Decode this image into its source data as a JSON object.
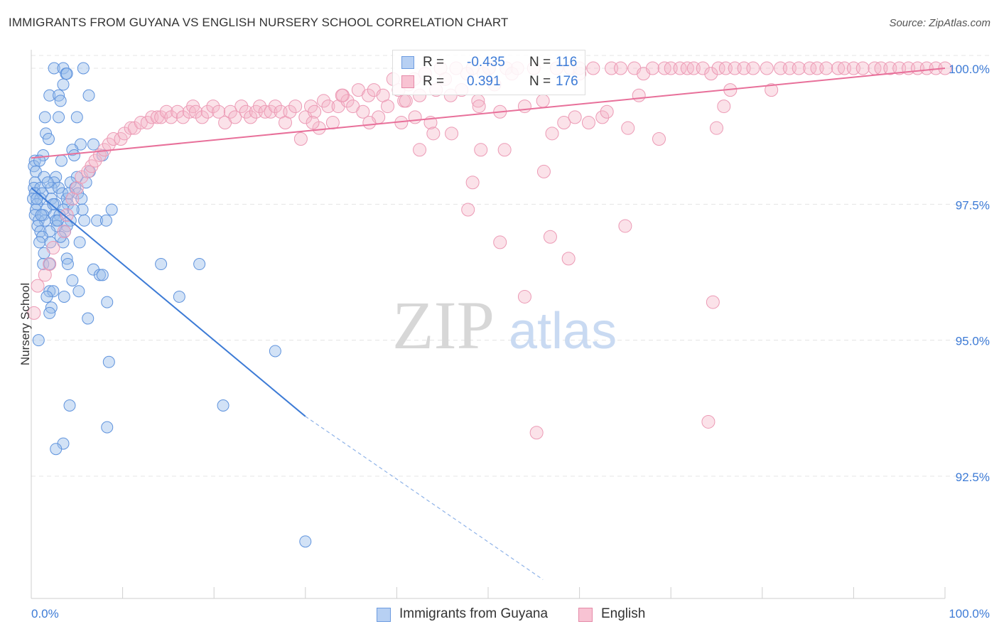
{
  "header": {
    "title": "IMMIGRANTS FROM GUYANA VS ENGLISH NURSERY SCHOOL CORRELATION CHART",
    "source": "Source: ZipAtlas.com"
  },
  "watermark": {
    "zip": "ZIP",
    "atlas": "atlas"
  },
  "legend_top": {
    "rows": [
      {
        "r_label": "R =",
        "r_value": "-0.435",
        "n_label": "N =",
        "n_value": "116"
      },
      {
        "r_label": "R =",
        "r_value": "0.391",
        "n_label": "N =",
        "n_value": "176"
      }
    ]
  },
  "legend_bottom": {
    "items": [
      "Immigrants from Guyana",
      "English"
    ]
  },
  "colors": {
    "blue": "#3d7bd6",
    "blue_fill": "#9bbfec",
    "pink": "#e8709a",
    "pink_fill": "#f5b6c9",
    "grid": "#e6e6e6",
    "tick_text": "#3d7bd6"
  },
  "chart_data": {
    "type": "scatter",
    "title": "IMMIGRANTS FROM GUYANA VS ENGLISH NURSERY SCHOOL CORRELATION CHART",
    "xlabel": "",
    "ylabel": "Nursery School",
    "xlim": [
      0,
      100
    ],
    "ylim": [
      90.6,
      100.2
    ],
    "x_tick_labels": [
      "0.0%",
      "100.0%"
    ],
    "y_ticks": [
      92.5,
      95.0,
      97.5,
      100.0
    ],
    "y_tick_labels": [
      "92.5%",
      "95.0%",
      "97.5%",
      "100.0%"
    ],
    "grid": true,
    "series": [
      {
        "name": "Immigrants from Guyana",
        "color": "#3d7bd6",
        "r": -0.435,
        "n": 116,
        "trend": {
          "x": [
            0,
            30
          ],
          "y": [
            97.8,
            93.6
          ],
          "dashed_to": [
            56,
            90.6
          ]
        },
        "points": [
          [
            2.5,
            100.0
          ],
          [
            3.5,
            100.0
          ],
          [
            5.7,
            100.0
          ],
          [
            3.8,
            99.9
          ],
          [
            3.9,
            99.9
          ],
          [
            3.5,
            99.7
          ],
          [
            2.0,
            99.5
          ],
          [
            3.0,
            99.5
          ],
          [
            6.3,
            99.5
          ],
          [
            3.2,
            99.4
          ],
          [
            1.5,
            99.1
          ],
          [
            3.0,
            99.1
          ],
          [
            5.0,
            99.1
          ],
          [
            1.6,
            98.8
          ],
          [
            1.9,
            98.7
          ],
          [
            5.4,
            98.6
          ],
          [
            6.8,
            98.6
          ],
          [
            4.5,
            98.5
          ],
          [
            1.3,
            98.4
          ],
          [
            4.7,
            98.4
          ],
          [
            7.8,
            98.4
          ],
          [
            0.4,
            98.3
          ],
          [
            3.3,
            98.3
          ],
          [
            0.3,
            98.2
          ],
          [
            0.5,
            98.1
          ],
          [
            1.4,
            98.0
          ],
          [
            2.7,
            98.0
          ],
          [
            5.0,
            98.0
          ],
          [
            0.4,
            97.9
          ],
          [
            2.5,
            97.9
          ],
          [
            4.3,
            97.9
          ],
          [
            6.0,
            97.9
          ],
          [
            0.3,
            97.8
          ],
          [
            1.0,
            97.8
          ],
          [
            2.2,
            97.8
          ],
          [
            3.0,
            97.8
          ],
          [
            4.8,
            97.8
          ],
          [
            0.4,
            97.7
          ],
          [
            1.2,
            97.7
          ],
          [
            3.4,
            97.7
          ],
          [
            5.1,
            97.7
          ],
          [
            0.2,
            97.6
          ],
          [
            1.0,
            97.6
          ],
          [
            2.2,
            97.6
          ],
          [
            3.9,
            97.6
          ],
          [
            5.5,
            97.6
          ],
          [
            0.6,
            97.5
          ],
          [
            2.6,
            97.5
          ],
          [
            4.0,
            97.5
          ],
          [
            0.5,
            97.4
          ],
          [
            1.6,
            97.4
          ],
          [
            3.5,
            97.4
          ],
          [
            5.6,
            97.4
          ],
          [
            8.8,
            97.4
          ],
          [
            0.4,
            97.3
          ],
          [
            1.3,
            97.3
          ],
          [
            2.5,
            97.3
          ],
          [
            3.1,
            97.3
          ],
          [
            0.8,
            97.2
          ],
          [
            1.5,
            97.2
          ],
          [
            2.7,
            97.2
          ],
          [
            4.3,
            97.2
          ],
          [
            5.8,
            97.2
          ],
          [
            7.2,
            97.2
          ],
          [
            8.2,
            97.2
          ],
          [
            0.7,
            97.1
          ],
          [
            2.8,
            97.1
          ],
          [
            3.9,
            97.1
          ],
          [
            1.0,
            97.0
          ],
          [
            2.0,
            97.0
          ],
          [
            3.7,
            97.0
          ],
          [
            1.2,
            96.9
          ],
          [
            0.9,
            96.8
          ],
          [
            2.1,
            96.8
          ],
          [
            3.5,
            96.8
          ],
          [
            1.4,
            96.6
          ],
          [
            3.9,
            96.5
          ],
          [
            4.0,
            96.4
          ],
          [
            1.3,
            96.4
          ],
          [
            2.0,
            96.4
          ],
          [
            14.2,
            96.4
          ],
          [
            18.4,
            96.4
          ],
          [
            6.8,
            96.3
          ],
          [
            7.5,
            96.2
          ],
          [
            7.8,
            96.2
          ],
          [
            4.5,
            96.1
          ],
          [
            2.0,
            95.9
          ],
          [
            2.4,
            95.9
          ],
          [
            5.2,
            95.9
          ],
          [
            1.7,
            95.8
          ],
          [
            3.6,
            95.8
          ],
          [
            16.2,
            95.8
          ],
          [
            8.3,
            95.7
          ],
          [
            2.2,
            95.6
          ],
          [
            2.0,
            95.5
          ],
          [
            6.2,
            95.4
          ],
          [
            0.8,
            95.0
          ],
          [
            26.7,
            94.8
          ],
          [
            8.5,
            94.6
          ],
          [
            4.2,
            93.8
          ],
          [
            21.0,
            93.8
          ],
          [
            8.3,
            93.4
          ],
          [
            3.5,
            93.1
          ],
          [
            2.7,
            93.0
          ],
          [
            30.0,
            91.3
          ],
          [
            0.6,
            97.6
          ],
          [
            1.8,
            97.9
          ],
          [
            2.9,
            97.2
          ],
          [
            4.6,
            97.4
          ],
          [
            6.4,
            98.1
          ],
          [
            0.9,
            98.3
          ],
          [
            2.4,
            97.5
          ],
          [
            3.2,
            96.9
          ],
          [
            4.1,
            97.7
          ],
          [
            1.1,
            97.3
          ],
          [
            5.3,
            96.8
          ]
        ]
      },
      {
        "name": "English",
        "color": "#e8709a",
        "r": 0.391,
        "n": 176,
        "trend": {
          "x": [
            0,
            100
          ],
          "y": [
            98.35,
            100.0
          ]
        },
        "points": [
          [
            0.3,
            95.5
          ],
          [
            0.7,
            96.0
          ],
          [
            1.5,
            96.2
          ],
          [
            2.0,
            96.4
          ],
          [
            2.4,
            96.7
          ],
          [
            3.6,
            97.0
          ],
          [
            3.9,
            97.3
          ],
          [
            4.5,
            97.6
          ],
          [
            5.0,
            97.8
          ],
          [
            5.5,
            98.0
          ],
          [
            6.2,
            98.1
          ],
          [
            6.6,
            98.2
          ],
          [
            7.0,
            98.3
          ],
          [
            7.5,
            98.4
          ],
          [
            8.0,
            98.5
          ],
          [
            8.5,
            98.6
          ],
          [
            9.0,
            98.7
          ],
          [
            9.8,
            98.7
          ],
          [
            10.2,
            98.8
          ],
          [
            10.9,
            98.9
          ],
          [
            11.3,
            98.9
          ],
          [
            12.0,
            99.0
          ],
          [
            12.7,
            99.0
          ],
          [
            13.2,
            99.1
          ],
          [
            13.8,
            99.1
          ],
          [
            14.2,
            99.1
          ],
          [
            14.8,
            99.2
          ],
          [
            15.3,
            99.1
          ],
          [
            16.0,
            99.2
          ],
          [
            16.6,
            99.1
          ],
          [
            17.3,
            99.2
          ],
          [
            17.7,
            99.3
          ],
          [
            18.0,
            99.2
          ],
          [
            18.7,
            99.1
          ],
          [
            19.3,
            99.2
          ],
          [
            19.9,
            99.3
          ],
          [
            20.5,
            99.2
          ],
          [
            21.2,
            99.0
          ],
          [
            21.8,
            99.2
          ],
          [
            22.3,
            99.1
          ],
          [
            23.0,
            99.3
          ],
          [
            23.5,
            99.2
          ],
          [
            24.0,
            99.1
          ],
          [
            24.6,
            99.2
          ],
          [
            25.0,
            99.3
          ],
          [
            25.6,
            99.2
          ],
          [
            26.2,
            99.2
          ],
          [
            26.7,
            99.3
          ],
          [
            27.3,
            99.2
          ],
          [
            27.8,
            99.0
          ],
          [
            28.3,
            99.2
          ],
          [
            28.9,
            99.3
          ],
          [
            29.5,
            98.7
          ],
          [
            30.0,
            99.1
          ],
          [
            30.6,
            99.3
          ],
          [
            31.0,
            99.2
          ],
          [
            31.5,
            98.9
          ],
          [
            32.0,
            99.4
          ],
          [
            32.5,
            99.3
          ],
          [
            33.0,
            99.0
          ],
          [
            33.6,
            99.3
          ],
          [
            34.1,
            99.5
          ],
          [
            34.6,
            99.4
          ],
          [
            35.2,
            99.3
          ],
          [
            35.8,
            99.6
          ],
          [
            36.3,
            99.2
          ],
          [
            36.9,
            99.5
          ],
          [
            37.5,
            99.6
          ],
          [
            38.0,
            99.1
          ],
          [
            38.5,
            99.5
          ],
          [
            39.0,
            99.3
          ],
          [
            39.6,
            99.8
          ],
          [
            40.2,
            99.6
          ],
          [
            40.8,
            99.4
          ],
          [
            41.3,
            99.7
          ],
          [
            41.9,
            99.8
          ],
          [
            42.5,
            99.5
          ],
          [
            43.1,
            99.9
          ],
          [
            43.7,
            99.0
          ],
          [
            44.3,
            99.6
          ],
          [
            44.8,
            100.0
          ],
          [
            45.3,
            99.8
          ],
          [
            45.9,
            99.5
          ],
          [
            46.5,
            100.0
          ],
          [
            47.1,
            99.6
          ],
          [
            47.7,
            99.9
          ],
          [
            48.3,
            100.0
          ],
          [
            48.9,
            99.4
          ],
          [
            49.5,
            99.9
          ],
          [
            50.1,
            100.0
          ],
          [
            50.7,
            99.7
          ],
          [
            51.3,
            99.2
          ],
          [
            52.0,
            100.0
          ],
          [
            52.6,
            99.9
          ],
          [
            53.2,
            100.0
          ],
          [
            54.0,
            99.3
          ],
          [
            55.0,
            100.0
          ],
          [
            56.0,
            99.4
          ],
          [
            57.5,
            100.0
          ],
          [
            58.3,
            99.0
          ],
          [
            59.0,
            100.0
          ],
          [
            60.0,
            99.9
          ],
          [
            61.5,
            100.0
          ],
          [
            62.5,
            99.1
          ],
          [
            63.5,
            100.0
          ],
          [
            64.5,
            100.0
          ],
          [
            65.3,
            98.9
          ],
          [
            66.0,
            100.0
          ],
          [
            67.0,
            99.9
          ],
          [
            68.0,
            100.0
          ],
          [
            68.7,
            98.7
          ],
          [
            69.3,
            100.0
          ],
          [
            70.0,
            100.0
          ],
          [
            71.0,
            100.0
          ],
          [
            71.8,
            100.0
          ],
          [
            72.5,
            100.0
          ],
          [
            73.5,
            100.0
          ],
          [
            74.4,
            99.9
          ],
          [
            75.2,
            100.0
          ],
          [
            76.0,
            100.0
          ],
          [
            77.0,
            100.0
          ],
          [
            78.0,
            100.0
          ],
          [
            79.0,
            100.0
          ],
          [
            80.5,
            100.0
          ],
          [
            81.0,
            99.6
          ],
          [
            82.0,
            100.0
          ],
          [
            83.0,
            100.0
          ],
          [
            84.0,
            100.0
          ],
          [
            85.2,
            100.0
          ],
          [
            86.0,
            100.0
          ],
          [
            87.0,
            100.0
          ],
          [
            88.3,
            100.0
          ],
          [
            89.0,
            100.0
          ],
          [
            90.0,
            100.0
          ],
          [
            91.0,
            100.0
          ],
          [
            92.3,
            100.0
          ],
          [
            93.0,
            100.0
          ],
          [
            94.0,
            100.0
          ],
          [
            95.0,
            100.0
          ],
          [
            96.0,
            100.0
          ],
          [
            97.0,
            100.0
          ],
          [
            98.0,
            100.0
          ],
          [
            99.0,
            100.0
          ],
          [
            100.0,
            100.0
          ],
          [
            40.5,
            99.0
          ],
          [
            44.0,
            98.8
          ],
          [
            41.0,
            99.4
          ],
          [
            49.0,
            99.3
          ],
          [
            42.0,
            99.1
          ],
          [
            59.5,
            99.1
          ],
          [
            61.0,
            99.0
          ],
          [
            57.0,
            98.8
          ],
          [
            42.5,
            98.5
          ],
          [
            49.2,
            98.5
          ],
          [
            51.8,
            98.5
          ],
          [
            48.3,
            97.9
          ],
          [
            56.1,
            98.1
          ],
          [
            47.8,
            97.4
          ],
          [
            65.0,
            97.1
          ],
          [
            51.3,
            96.8
          ],
          [
            56.8,
            96.9
          ],
          [
            58.8,
            96.5
          ],
          [
            54.0,
            95.8
          ],
          [
            74.6,
            95.7
          ],
          [
            55.3,
            93.3
          ],
          [
            74.1,
            93.5
          ],
          [
            76.5,
            99.6
          ],
          [
            75.8,
            99.3
          ],
          [
            75.0,
            98.9
          ],
          [
            60.0,
            100.0
          ],
          [
            30.8,
            99.0
          ],
          [
            34.0,
            99.5
          ],
          [
            37.0,
            99.0
          ],
          [
            46.0,
            98.8
          ],
          [
            63.0,
            99.2
          ],
          [
            66.5,
            99.5
          ]
        ]
      }
    ]
  }
}
